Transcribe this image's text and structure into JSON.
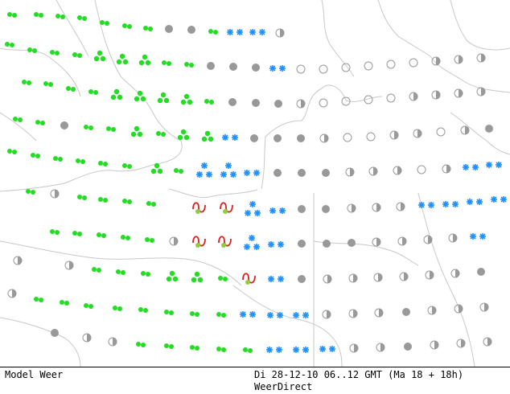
{
  "footer": {
    "model_label": "Model Weer",
    "datetime_label": "Di 28-12-10 06..12 GMT (Ma 18 + 18h)",
    "source_label": "WeerDirect"
  },
  "colors": {
    "coastline": "#c8c8c8",
    "rain": "#22dd22",
    "snow": "#1e90ff",
    "overcast": "#999999",
    "freezing_rain": "#dd2222",
    "partly_cloudy": "#999999"
  },
  "legend_symbols": {
    "rain": "green-dot-cluster",
    "snow": "blue-asterisk",
    "overcast": "grey-filled-circle",
    "clear": "grey-open-circle",
    "partly_cloudy": "grey-half-circle",
    "freezing_rain": "red-wave-green-dot"
  }
}
